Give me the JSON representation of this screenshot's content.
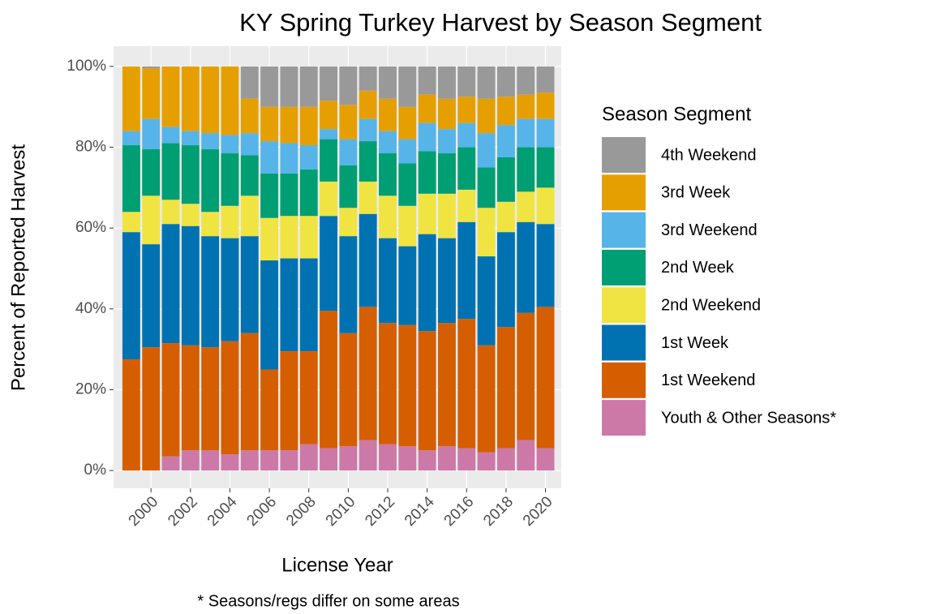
{
  "chart_data": {
    "type": "stacked-bar",
    "title": "KY Spring Turkey Harvest by Season Segment",
    "x_label": "License Year",
    "y_label": "Percent of Reported Harvest",
    "caption": "* Seasons/regs differ on some areas",
    "legend_title": "Season Segment",
    "legend": "right",
    "grid": true,
    "x": [
      1999,
      2000,
      2001,
      2002,
      2003,
      2004,
      2005,
      2006,
      2007,
      2008,
      2009,
      2010,
      2011,
      2012,
      2013,
      2014,
      2015,
      2016,
      2017,
      2018,
      2019,
      2020
    ],
    "xlim": [
      1998.1,
      2020.8
    ],
    "xticks": [
      2000,
      2002,
      2004,
      2006,
      2008,
      2010,
      2012,
      2014,
      2016,
      2018,
      2020
    ],
    "ylim": [
      -4.4,
      105
    ],
    "yticks": [
      {
        "value": 0,
        "label": "0%"
      },
      {
        "value": 20,
        "label": "20%"
      },
      {
        "value": 40,
        "label": "40%"
      },
      {
        "value": 60,
        "label": "60%"
      },
      {
        "value": 80,
        "label": "80%"
      },
      {
        "value": 100,
        "label": "100%"
      }
    ],
    "series": [
      {
        "name": "Youth & Other Seasons*",
        "color": "#CC79A7",
        "values": [
          0,
          0,
          3.5,
          5,
          5,
          4,
          5,
          5,
          5,
          6.5,
          5.5,
          6,
          7.5,
          6.5,
          6,
          5,
          6,
          5.5,
          4.5,
          5.5,
          7.5,
          5.5
        ]
      },
      {
        "name": "1st Weekend",
        "color": "#D55E00",
        "values": [
          27.5,
          30.5,
          28,
          26,
          25.5,
          28,
          29,
          20,
          24.5,
          23,
          34,
          28,
          33,
          30,
          30,
          29.5,
          30.5,
          32,
          26.5,
          30,
          31.5,
          35
        ]
      },
      {
        "name": "1st Week",
        "color": "#0072B2",
        "values": [
          31.5,
          25.5,
          29.5,
          29.5,
          27.5,
          25.5,
          24,
          27,
          23,
          23,
          23.5,
          24,
          23,
          21,
          19.5,
          24,
          21,
          24,
          22,
          23.5,
          22.5,
          20.5
        ]
      },
      {
        "name": "2nd Weekend",
        "color": "#F0E442",
        "values": [
          5,
          12,
          6,
          5.5,
          6,
          8,
          10,
          10.5,
          10.5,
          10.5,
          8.5,
          7,
          8,
          10.5,
          10,
          10,
          11,
          8,
          12,
          7.5,
          7.5,
          9
        ]
      },
      {
        "name": "2nd Week",
        "color": "#009E73",
        "values": [
          16.5,
          11.5,
          14,
          14.5,
          15.5,
          13,
          10,
          11,
          10.5,
          11.5,
          10.5,
          10.5,
          10,
          10.5,
          10.5,
          10.5,
          10,
          10.5,
          10,
          11,
          11,
          10
        ]
      },
      {
        "name": "3rd Weekend",
        "color": "#56B4E9",
        "values": [
          3.5,
          7.5,
          4,
          3.5,
          4,
          4.5,
          5.5,
          8,
          7.5,
          6,
          2.5,
          6.5,
          5.5,
          5.5,
          6,
          7,
          6,
          6,
          8.5,
          8,
          7,
          7
        ]
      },
      {
        "name": "3rd Week",
        "color": "#E69F00",
        "values": [
          16,
          12.5,
          15,
          16,
          16.5,
          17,
          8.5,
          8.5,
          9,
          9.5,
          7,
          8.5,
          7,
          8,
          8,
          7,
          7.5,
          6.5,
          8.5,
          7,
          6,
          6.5
        ]
      },
      {
        "name": "4th Weekend",
        "color": "#999999",
        "values": [
          0,
          0.5,
          0,
          0,
          0,
          0,
          8,
          10,
          10,
          10,
          8.5,
          9.5,
          6,
          8,
          10,
          7,
          8,
          7.5,
          8,
          7.5,
          7,
          6.5
        ]
      }
    ]
  }
}
